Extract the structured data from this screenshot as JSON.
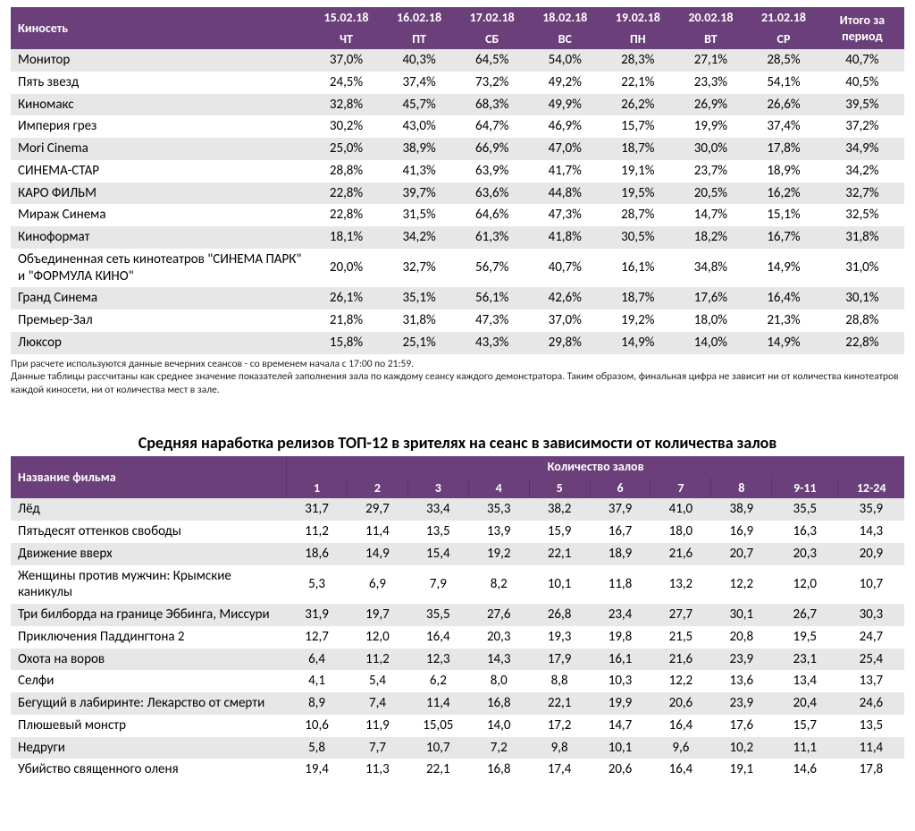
{
  "colors": {
    "header_bg": "#6b3f7a",
    "header_text": "#ffffff",
    "row_alt_bg": "#e7e7e7",
    "background": "#ffffff",
    "text": "#000000"
  },
  "typography": {
    "font_family": "Calibri",
    "cell_fontsize_pt": 11,
    "header_fontsize_pt": 10.5,
    "title_fontsize_pt": 13
  },
  "table1": {
    "header": {
      "name": "Киносеть",
      "dates": [
        "15.02.18",
        "16.02.18",
        "17.02.18",
        "18.02.18",
        "19.02.18",
        "20.02.18",
        "21.02.18"
      ],
      "weekdays": [
        "ЧТ",
        "ПТ",
        "СБ",
        "ВС",
        "ПН",
        "ВТ",
        "СР"
      ],
      "total": "Итого за период"
    },
    "rows": [
      {
        "name": "Монитор",
        "v": [
          "37,0%",
          "40,3%",
          "64,5%",
          "54,0%",
          "28,3%",
          "27,1%",
          "28,5%"
        ],
        "total": "40,7%"
      },
      {
        "name": "Пять звезд",
        "v": [
          "24,5%",
          "37,4%",
          "73,2%",
          "49,2%",
          "22,1%",
          "23,3%",
          "54,1%"
        ],
        "total": "40,5%"
      },
      {
        "name": "Киномакс",
        "v": [
          "32,8%",
          "45,7%",
          "68,3%",
          "49,9%",
          "26,2%",
          "26,9%",
          "26,6%"
        ],
        "total": "39,5%"
      },
      {
        "name": "Империя грез",
        "v": [
          "30,2%",
          "43,0%",
          "64,7%",
          "46,9%",
          "15,7%",
          "19,9%",
          "37,4%"
        ],
        "total": "37,2%"
      },
      {
        "name": "Mori Cinema",
        "v": [
          "25,0%",
          "38,9%",
          "66,9%",
          "47,0%",
          "18,7%",
          "30,0%",
          "17,8%"
        ],
        "total": "34,9%"
      },
      {
        "name": "СИНЕМА-СТАР",
        "v": [
          "28,8%",
          "41,3%",
          "63,9%",
          "41,7%",
          "19,1%",
          "23,7%",
          "18,9%"
        ],
        "total": "34,2%"
      },
      {
        "name": "КАРО ФИЛЬМ",
        "v": [
          "22,8%",
          "39,7%",
          "63,6%",
          "44,8%",
          "19,5%",
          "20,5%",
          "16,2%"
        ],
        "total": "32,7%"
      },
      {
        "name": "Мираж Синема",
        "v": [
          "22,8%",
          "31,5%",
          "64,6%",
          "47,3%",
          "28,7%",
          "14,7%",
          "15,1%"
        ],
        "total": "32,5%"
      },
      {
        "name": "Киноформат",
        "v": [
          "18,1%",
          "34,2%",
          "61,3%",
          "41,8%",
          "30,5%",
          "18,2%",
          "16,7%"
        ],
        "total": "31,8%"
      },
      {
        "name": "Объединенная сеть кинотеатров \"СИНЕМА ПАРК\" и \"ФОРМУЛА КИНО\"",
        "v": [
          "20,0%",
          "32,7%",
          "56,7%",
          "40,7%",
          "16,1%",
          "34,8%",
          "14,9%"
        ],
        "total": "31,0%"
      },
      {
        "name": "Гранд Синема",
        "v": [
          "26,1%",
          "35,1%",
          "56,1%",
          "42,6%",
          "18,7%",
          "17,6%",
          "16,4%"
        ],
        "total": "30,1%"
      },
      {
        "name": "Премьер-Зал",
        "v": [
          "21,8%",
          "31,8%",
          "47,3%",
          "37,0%",
          "19,2%",
          "18,0%",
          "21,3%"
        ],
        "total": "28,8%"
      },
      {
        "name": "Люксор",
        "v": [
          "15,8%",
          "25,1%",
          "43,3%",
          "29,8%",
          "14,9%",
          "14,0%",
          "14,9%"
        ],
        "total": "22,8%"
      }
    ]
  },
  "footnotes": [
    "При расчете используются данные вечерних сеансов - со временем начала с 17:00 по 21:59.",
    "Данные таблицы рассчитаны как среднее значение показателей заполнения зала по каждому сеансу каждого демонстратора. Таким образом, финальная цифра не зависит ни от количества кинотеатров каждой киносети, ни от количества мест в зале."
  ],
  "table2": {
    "title": "Средняя наработка релизов ТОП-12 в зрителях на сеанс в зависимости от количества залов",
    "header": {
      "name": "Название фильма",
      "group": "Количество залов",
      "cols": [
        "1",
        "2",
        "3",
        "4",
        "5",
        "6",
        "7",
        "8",
        "9-11",
        "12-24"
      ]
    },
    "rows": [
      {
        "name": "Лёд",
        "v": [
          "31,7",
          "29,7",
          "33,4",
          "35,3",
          "38,2",
          "37,9",
          "41,0",
          "38,9",
          "35,5",
          "35,9"
        ]
      },
      {
        "name": "Пятьдесят оттенков свободы",
        "v": [
          "11,2",
          "11,4",
          "13,5",
          "13,9",
          "15,9",
          "16,7",
          "18,0",
          "16,9",
          "16,3",
          "14,3"
        ]
      },
      {
        "name": "Движение вверх",
        "v": [
          "18,6",
          "14,9",
          "15,4",
          "19,2",
          "22,1",
          "18,9",
          "21,6",
          "20,7",
          "20,3",
          "20,9"
        ]
      },
      {
        "name": "Женщины против мужчин: Крымские каникулы",
        "v": [
          "5,3",
          "6,9",
          "7,9",
          "8,2",
          "10,1",
          "11,8",
          "13,2",
          "12,2",
          "12,0",
          "10,7"
        ]
      },
      {
        "name": "Три билборда на границе Эббинга, Миссури",
        "v": [
          "31,9",
          "19,7",
          "35,5",
          "27,6",
          "26,8",
          "23,4",
          "27,7",
          "30,1",
          "26,7",
          "30,3"
        ]
      },
      {
        "name": "Приключения Паддингтона 2",
        "v": [
          "12,7",
          "12,0",
          "16,4",
          "20,3",
          "19,3",
          "19,8",
          "21,5",
          "20,8",
          "19,5",
          "24,7"
        ]
      },
      {
        "name": "Охота на воров",
        "v": [
          "6,4",
          "11,2",
          "12,3",
          "14,3",
          "17,9",
          "16,1",
          "21,6",
          "23,9",
          "23,1",
          "25,4"
        ]
      },
      {
        "name": "Селфи",
        "v": [
          "4,1",
          "5,4",
          "6,2",
          "8,0",
          "8,8",
          "10,3",
          "12,2",
          "13,6",
          "13,4",
          "13,7"
        ]
      },
      {
        "name": "Бегущий в лабиринте: Лекарство от смерти",
        "v": [
          "8,9",
          "7,4",
          "11,4",
          "16,8",
          "22,1",
          "19,9",
          "20,6",
          "23,9",
          "20,4",
          "24,6"
        ]
      },
      {
        "name": "Плюшевый монстр",
        "v": [
          "10,6",
          "11,9",
          "15,05",
          "14,0",
          "17,2",
          "14,7",
          "16,4",
          "17,6",
          "15,7",
          "13,5"
        ]
      },
      {
        "name": "Недруги",
        "v": [
          "5,8",
          "7,7",
          "10,7",
          "7,2",
          "9,8",
          "10,1",
          "9,6",
          "10,2",
          "11,1",
          "11,4"
        ]
      },
      {
        "name": "Убийство священного оленя",
        "v": [
          "19,4",
          "11,3",
          "22,1",
          "16,8",
          "17,4",
          "20,6",
          "16,4",
          "19,1",
          "14,6",
          "17,8"
        ]
      }
    ]
  }
}
